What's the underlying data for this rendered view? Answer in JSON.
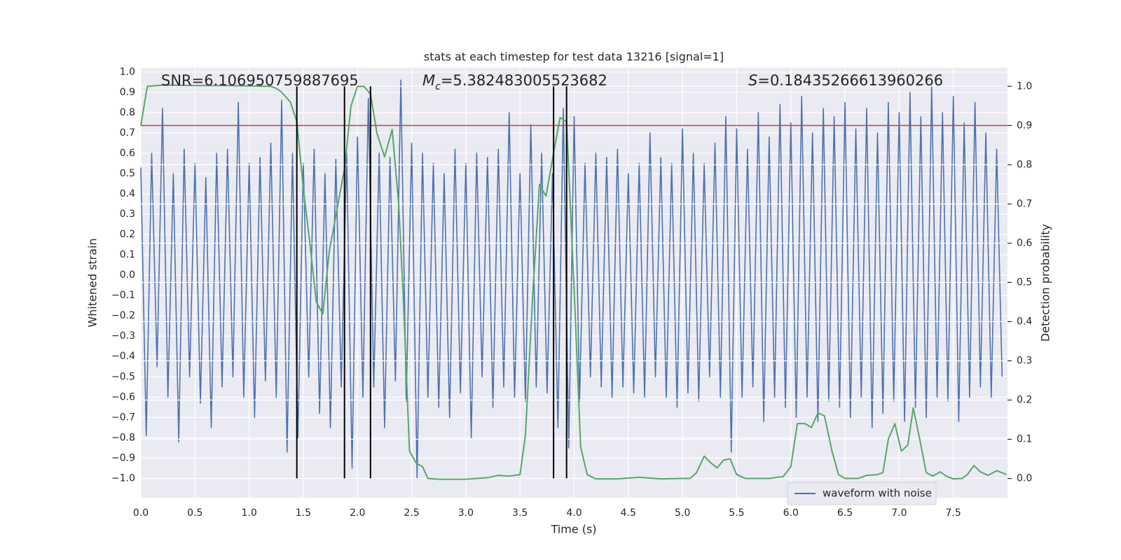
{
  "chart_data": {
    "type": "line",
    "title": "stats at each timestep for test data 13216 [signal=1]",
    "xlabel": "Time (s)",
    "ylabel": "Whitened strain",
    "y2label": "Detection probability",
    "xlim": [
      0,
      8.0
    ],
    "ylim": [
      -1.095,
      1.02
    ],
    "y2lim": [
      -0.049,
      1.047
    ],
    "xticks": [
      {
        "value": 0,
        "label": "0.0"
      },
      {
        "value": 0.5,
        "label": "0.5"
      },
      {
        "value": 1,
        "label": "1.0"
      },
      {
        "value": 1.5,
        "label": "1.5"
      },
      {
        "value": 2,
        "label": "2.0"
      },
      {
        "value": 2.5,
        "label": "2.5"
      },
      {
        "value": 3,
        "label": "3.0"
      },
      {
        "value": 3.5,
        "label": "3.5"
      },
      {
        "value": 4,
        "label": "4.0"
      },
      {
        "value": 4.5,
        "label": "4.5"
      },
      {
        "value": 5,
        "label": "5.0"
      },
      {
        "value": 5.5,
        "label": "5.5"
      },
      {
        "value": 6,
        "label": "6.0"
      },
      {
        "value": 6.5,
        "label": "6.5"
      },
      {
        "value": 7,
        "label": "7.0"
      },
      {
        "value": 7.5,
        "label": "7.5"
      }
    ],
    "yticks": [
      {
        "value": -1.0,
        "label": "−1.0"
      },
      {
        "value": -0.9,
        "label": "−0.9"
      },
      {
        "value": -0.8,
        "label": "−0.8"
      },
      {
        "value": -0.7,
        "label": "−0.7"
      },
      {
        "value": -0.6,
        "label": "−0.6"
      },
      {
        "value": -0.5,
        "label": "−0.5"
      },
      {
        "value": -0.4,
        "label": "−0.4"
      },
      {
        "value": -0.3,
        "label": "−0.3"
      },
      {
        "value": -0.2,
        "label": "−0.2"
      },
      {
        "value": -0.1,
        "label": "−0.1"
      },
      {
        "value": 0,
        "label": "0.0"
      },
      {
        "value": 0.1,
        "label": "0.1"
      },
      {
        "value": 0.2,
        "label": "0.2"
      },
      {
        "value": 0.3,
        "label": "0.3"
      },
      {
        "value": 0.4,
        "label": "0.4"
      },
      {
        "value": 0.5,
        "label": "0.5"
      },
      {
        "value": 0.6,
        "label": "0.6"
      },
      {
        "value": 0.7,
        "label": "0.7"
      },
      {
        "value": 0.8,
        "label": "0.8"
      },
      {
        "value": 0.9,
        "label": "0.9"
      },
      {
        "value": 1.0,
        "label": "1.0"
      }
    ],
    "y2ticks": [
      {
        "value": 0,
        "label": "0.0"
      },
      {
        "value": 0.1,
        "label": "0.1"
      },
      {
        "value": 0.2,
        "label": "0.2"
      },
      {
        "value": 0.3,
        "label": "0.3"
      },
      {
        "value": 0.4,
        "label": "0.4"
      },
      {
        "value": 0.5,
        "label": "0.5"
      },
      {
        "value": 0.6,
        "label": "0.6"
      },
      {
        "value": 0.7,
        "label": "0.7"
      },
      {
        "value": 0.8,
        "label": "0.8"
      },
      {
        "value": 0.9,
        "label": "0.9"
      },
      {
        "value": 1.0,
        "label": "1.0"
      }
    ],
    "grid": true,
    "legend": "lower right",
    "annotations": [
      {
        "text": "SNR=6.106950759887695"
      },
      {
        "symbol": "M",
        "subscript": "c",
        "text": "=5.382483005523682"
      },
      {
        "symbol": "S",
        "text": "=0.18435266613960266"
      }
    ],
    "threshold": {
      "value": 0.9,
      "axis": "y2",
      "color": "#c44e52"
    },
    "vlines": {
      "x": [
        1.44,
        1.88,
        2.12,
        3.81,
        3.93
      ],
      "ymin": -1.0,
      "y2max": 1.0,
      "color": "#000000"
    },
    "series": [
      {
        "name": "waveform with noise",
        "color": "#4c72b0",
        "x": [
          0,
          0.05,
          0.1,
          0.15,
          0.2,
          0.25,
          0.3,
          0.35,
          0.4,
          0.45,
          0.5,
          0.55,
          0.6,
          0.65,
          0.7,
          0.75,
          0.8,
          0.85,
          0.9,
          0.95,
          1,
          1.05,
          1.1,
          1.15,
          1.2,
          1.25,
          1.3,
          1.35,
          1.4,
          1.45,
          1.5,
          1.55,
          1.6,
          1.65,
          1.7,
          1.75,
          1.8,
          1.85,
          1.9,
          1.95,
          2,
          2.05,
          2.1,
          2.15,
          2.2,
          2.25,
          2.3,
          2.35,
          2.4,
          2.45,
          2.5,
          2.55,
          2.6,
          2.65,
          2.7,
          2.75,
          2.8,
          2.85,
          2.9,
          2.95,
          3,
          3.05,
          3.1,
          3.15,
          3.2,
          3.25,
          3.3,
          3.35,
          3.4,
          3.45,
          3.5,
          3.55,
          3.6,
          3.65,
          3.7,
          3.75,
          3.8,
          3.85,
          3.9,
          3.95,
          4,
          4.05,
          4.1,
          4.15,
          4.2,
          4.25,
          4.3,
          4.35,
          4.4,
          4.45,
          4.5,
          4.55,
          4.6,
          4.65,
          4.7,
          4.75,
          4.8,
          4.85,
          4.9,
          4.95,
          5,
          5.05,
          5.1,
          5.15,
          5.2,
          5.25,
          5.3,
          5.35,
          5.4,
          5.45,
          5.5,
          5.55,
          5.6,
          5.65,
          5.7,
          5.75,
          5.8,
          5.85,
          5.9,
          5.95,
          6,
          6.05,
          6.1,
          6.15,
          6.2,
          6.25,
          6.3,
          6.35,
          6.4,
          6.45,
          6.5,
          6.55,
          6.6,
          6.65,
          6.7,
          6.75,
          6.8,
          6.85,
          6.9,
          6.95,
          7,
          7.05,
          7.1,
          7.15,
          7.2,
          7.25,
          7.3,
          7.35,
          7.4,
          7.45,
          7.5,
          7.55,
          7.6,
          7.65,
          7.7,
          7.75,
          7.8,
          7.85,
          7.9,
          7.95
        ],
        "values": [
          0.53,
          -0.79,
          0.6,
          -0.45,
          0.82,
          -0.6,
          0.5,
          -0.82,
          0.62,
          -0.5,
          0.55,
          -0.63,
          0.48,
          -0.75,
          0.6,
          -0.55,
          0.62,
          -0.5,
          0.85,
          -0.6,
          0.55,
          -0.7,
          0.58,
          -0.52,
          0.65,
          -0.6,
          0.86,
          -0.87,
          0.6,
          -0.8,
          0.55,
          -0.5,
          0.62,
          -0.68,
          0.5,
          -0.75,
          0.57,
          -0.55,
          0.6,
          -0.95,
          0.68,
          -0.6,
          0.87,
          -0.55,
          0.6,
          -0.75,
          0.58,
          -0.52,
          0.96,
          -0.62,
          0.65,
          -1.0,
          0.6,
          -0.6,
          0.55,
          -0.65,
          0.5,
          -0.7,
          0.62,
          -0.58,
          0.55,
          -0.8,
          0.6,
          -0.5,
          0.58,
          -0.65,
          0.62,
          -0.55,
          0.8,
          -0.6,
          0.5,
          -0.62,
          0.74,
          -0.55,
          0.6,
          -0.58,
          0.5,
          -0.75,
          0.82,
          -0.85,
          0.78,
          -0.62,
          0.55,
          -0.5,
          0.6,
          -0.55,
          0.58,
          -0.6,
          0.62,
          -0.55,
          0.5,
          -0.58,
          0.55,
          -0.6,
          0.7,
          -0.5,
          0.58,
          -0.6,
          0.55,
          -0.65,
          0.72,
          -0.58,
          0.6,
          -0.62,
          0.55,
          -0.5,
          0.65,
          -0.6,
          0.78,
          -0.87,
          0.72,
          -0.6,
          0.62,
          -0.55,
          0.8,
          -0.72,
          0.68,
          -0.6,
          0.84,
          -0.65,
          0.75,
          -0.7,
          0.88,
          -0.6,
          0.7,
          -0.72,
          0.82,
          -0.62,
          0.78,
          -0.65,
          0.85,
          -0.7,
          0.72,
          -0.6,
          0.82,
          -0.75,
          0.7,
          -0.68,
          0.85,
          -0.62,
          0.8,
          -0.72,
          0.9,
          -0.65,
          0.78,
          -0.7,
          0.93,
          -0.6,
          0.8,
          -0.62,
          0.88,
          -0.72,
          0.75,
          -0.6,
          0.85,
          -0.55,
          0.7,
          -0.6,
          0.62,
          -0.5
        ]
      },
      {
        "color": "#55a868",
        "axis": "y2",
        "x": [
          0,
          0.06,
          0.2,
          0.5,
          0.8,
          1.0,
          1.2,
          1.25,
          1.3,
          1.38,
          1.44,
          1.5,
          1.56,
          1.62,
          1.68,
          1.74,
          1.82,
          1.88,
          1.94,
          2.0,
          2.06,
          2.12,
          2.18,
          2.25,
          2.32,
          2.38,
          2.42,
          2.48,
          2.54,
          2.6,
          2.65,
          2.75,
          3.0,
          3.2,
          3.3,
          3.4,
          3.5,
          3.55,
          3.62,
          3.68,
          3.74,
          3.81,
          3.87,
          3.93,
          4.0,
          4.06,
          4.12,
          4.2,
          4.4,
          4.6,
          4.8,
          5.0,
          5.07,
          5.13,
          5.2,
          5.26,
          5.32,
          5.38,
          5.44,
          5.5,
          5.58,
          5.8,
          5.93,
          6.0,
          6.06,
          6.13,
          6.19,
          6.25,
          6.31,
          6.38,
          6.44,
          6.5,
          6.62,
          6.7,
          6.8,
          6.85,
          6.9,
          6.96,
          7.02,
          7.08,
          7.13,
          7.19,
          7.25,
          7.31,
          7.38,
          7.44,
          7.5,
          7.58,
          7.63,
          7.69,
          7.75,
          7.82,
          7.9,
          7.99
        ],
        "values": [
          0.9,
          1.0,
          1.003,
          1.002,
          1.002,
          1.001,
          1.0,
          0.995,
          0.985,
          0.96,
          0.91,
          0.74,
          0.6,
          0.45,
          0.42,
          0.58,
          0.7,
          0.79,
          0.95,
          1.0,
          1.0,
          0.98,
          0.88,
          0.82,
          0.89,
          0.7,
          0.48,
          0.07,
          0.04,
          0.03,
          0.0,
          -0.002,
          -0.002,
          0.002,
          0.008,
          0.006,
          0.01,
          0.11,
          0.48,
          0.75,
          0.72,
          0.83,
          0.92,
          0.91,
          0.48,
          0.08,
          0.01,
          -0.001,
          -0.001,
          0.003,
          -0.001,
          0.0,
          0.0,
          0.015,
          0.057,
          0.04,
          0.027,
          0.047,
          0.05,
          0.01,
          0.0,
          0.0,
          0.005,
          0.03,
          0.14,
          0.14,
          0.13,
          0.167,
          0.16,
          0.07,
          0.01,
          0.0,
          0.0,
          0.008,
          0.01,
          0.015,
          0.1,
          0.14,
          0.07,
          0.085,
          0.18,
          0.1,
          0.015,
          0.006,
          0.017,
          0.005,
          -0.001,
          0.0,
          0.01,
          0.033,
          0.017,
          0.008,
          0.02,
          0.01
        ]
      }
    ]
  }
}
